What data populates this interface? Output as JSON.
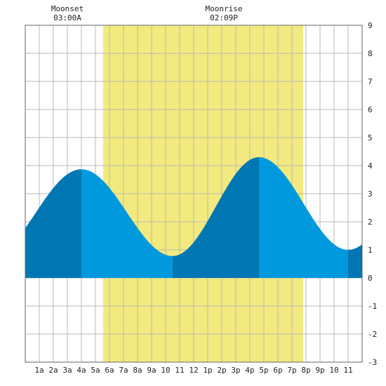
{
  "moon_events": [
    {
      "label": "Moonset",
      "time": "03:00A",
      "hour": 3.0
    },
    {
      "label": "Moonrise",
      "time": "02:09P",
      "hour": 14.15
    }
  ],
  "colors": {
    "daylight": "#f2ea7e",
    "water_light": "#0099dd",
    "water_dark": "#0077b3",
    "grid": "#b8b8b8",
    "background": "#ffffff"
  },
  "chart_data": {
    "type": "area",
    "title": "",
    "xlabel": "",
    "ylabel": "",
    "xlim": [
      0,
      24
    ],
    "ylim": [
      -3,
      9
    ],
    "y_ticks": [
      -3,
      -2,
      -1,
      0,
      1,
      2,
      3,
      4,
      5,
      6,
      7,
      8,
      9
    ],
    "x_tick_labels": [
      "1a",
      "2a",
      "3a",
      "4a",
      "5a",
      "6a",
      "7a",
      "8a",
      "9a",
      "10",
      "11",
      "12",
      "1p",
      "2p",
      "3p",
      "4p",
      "5p",
      "6p",
      "7p",
      "8p",
      "9p",
      "10",
      "11"
    ],
    "grid": true,
    "daylight_hours": [
      5.55,
      19.8
    ],
    "tide_extremes": [
      {
        "hour": 4.0,
        "height": 3.87,
        "type": "high"
      },
      {
        "hour": 10.5,
        "height": 0.78,
        "type": "low"
      },
      {
        "hour": 16.65,
        "height": 4.3,
        "type": "high"
      },
      {
        "hour": 23.0,
        "height": 1.0,
        "type": "low"
      }
    ],
    "series": [
      {
        "x": [
          0,
          1,
          2,
          3,
          4,
          5,
          6,
          7,
          8,
          9,
          10,
          11,
          12,
          13,
          14,
          15,
          16,
          17,
          18,
          19,
          20,
          21,
          22,
          23,
          24
        ],
        "values": [
          1.65,
          2.2,
          2.85,
          3.5,
          3.87,
          3.35,
          2.5,
          1.72,
          1.22,
          0.95,
          0.8,
          0.82,
          1.25,
          2.1,
          3.1,
          3.9,
          4.22,
          3.95,
          3.1,
          2.2,
          1.48,
          1.12,
          1.02,
          1.05,
          1.22
        ]
      }
    ]
  }
}
